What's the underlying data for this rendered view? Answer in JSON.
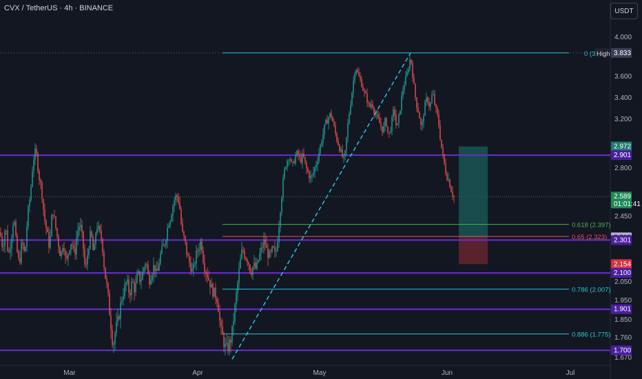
{
  "header": {
    "title": "CVX / TetherUS · 4h · BINANCE",
    "currency_button": "USDT"
  },
  "chart_data": {
    "type": "candlestick",
    "symbol": "CVX / TetherUS",
    "timeframe": "4h",
    "exchange": "BINANCE",
    "y_axis_ticks": [
      "4.000",
      "3.600",
      "3.400",
      "3.200",
      "2.800",
      "2.450",
      "2.050",
      "1.950",
      "1.850",
      "1.760",
      "1.670"
    ],
    "x_axis_ticks": [
      "Mar",
      "Apr",
      "May",
      "Jun",
      "Jul"
    ],
    "ylim": [
      1.65,
      4.15
    ],
    "price_badges": [
      {
        "value": "3.833",
        "color": "#3a4157",
        "text_color": "#ffffff"
      },
      {
        "value": "2.972",
        "color": "#1f7a72",
        "text_color": "#ffffff"
      },
      {
        "value": "2.901",
        "color": "#4b1f9e",
        "text_color": "#ffffff"
      },
      {
        "value": "2.589",
        "sub": "01:01:41",
        "color": "#1f8a55",
        "text_color": "#ffffff"
      },
      {
        "value": "2.318",
        "color": "#b2b5be",
        "text_color": "#131722"
      },
      {
        "value": "2.301",
        "color": "#4b1f9e",
        "text_color": "#ffffff"
      },
      {
        "value": "2.154",
        "color": "#d33244",
        "text_color": "#ffffff"
      },
      {
        "value": "2.100",
        "color": "#4b1f9e",
        "text_color": "#ffffff"
      },
      {
        "value": "1.901",
        "color": "#4b1f9e",
        "text_color": "#ffffff"
      },
      {
        "value": "1.700",
        "color": "#4b1f9e",
        "text_color": "#ffffff"
      }
    ],
    "horizontal_levels": [
      {
        "value": 2.901,
        "color": "#6a2cd8"
      },
      {
        "value": 2.301,
        "color": "#6a2cd8"
      },
      {
        "value": 2.1,
        "color": "#6a2cd8"
      },
      {
        "value": 1.901,
        "color": "#6a2cd8"
      },
      {
        "value": 1.7,
        "color": "#6a2cd8"
      }
    ],
    "fib_levels": [
      {
        "label": "0 (3.833)",
        "value": 3.833,
        "color": "#26c6da"
      },
      {
        "label": "0.618 (2.397)",
        "value": 2.397,
        "color": "#4caf50"
      },
      {
        "label": "0.65 (2.323)",
        "value": 2.323,
        "color": "#ef5350"
      },
      {
        "label": "0.786 (2.007)",
        "value": 2.007,
        "color": "#26c6da"
      },
      {
        "label": "0.886 (1.775)",
        "value": 1.775,
        "color": "#26c6da"
      }
    ],
    "fib_top_label_visible": "0 (3.",
    "high_marker": "High",
    "trendline": {
      "color": "#26c6da",
      "style": "dashed",
      "from": {
        "date": "2024-04-09",
        "price": 1.66
      },
      "to": {
        "date": "2024-05-24",
        "price": 3.833
      }
    },
    "position_box": {
      "entry": 2.318,
      "target": 2.972,
      "stop": 2.154,
      "profit_color": "#1b5e5a",
      "loss_color": "#6b2630"
    },
    "last_price": "2.589",
    "countdown": "01:01:41",
    "reference_line": 3.833,
    "price_path": [
      [
        0,
        2.35
      ],
      [
        4,
        2.25
      ],
      [
        8,
        2.4
      ],
      [
        12,
        2.2
      ],
      [
        16,
        2.3
      ],
      [
        20,
        2.45
      ],
      [
        24,
        2.25
      ],
      [
        28,
        2.15
      ],
      [
        32,
        2.3
      ],
      [
        36,
        2.2
      ],
      [
        40,
        2.45
      ],
      [
        44,
        2.6
      ],
      [
        48,
        2.85
      ],
      [
        52,
        2.95
      ],
      [
        56,
        2.75
      ],
      [
        60,
        2.65
      ],
      [
        64,
        2.45
      ],
      [
        68,
        2.35
      ],
      [
        72,
        2.25
      ],
      [
        76,
        2.5
      ],
      [
        80,
        2.4
      ],
      [
        84,
        2.3
      ],
      [
        88,
        2.2
      ],
      [
        92,
        2.3
      ],
      [
        96,
        2.15
      ],
      [
        100,
        2.25
      ],
      [
        104,
        2.3
      ],
      [
        108,
        2.2
      ],
      [
        112,
        2.35
      ],
      [
        116,
        2.4
      ],
      [
        120,
        2.3
      ],
      [
        124,
        2.1
      ],
      [
        128,
        2.25
      ],
      [
        132,
        2.35
      ],
      [
        136,
        2.2
      ],
      [
        140,
        2.4
      ],
      [
        144,
        2.35
      ],
      [
        148,
        2.3
      ],
      [
        152,
        2.1
      ],
      [
        156,
        2.0
      ],
      [
        160,
        1.85
      ],
      [
        164,
        1.72
      ],
      [
        168,
        1.8
      ],
      [
        172,
        1.85
      ],
      [
        176,
        1.95
      ],
      [
        180,
        2.0
      ],
      [
        184,
        2.05
      ],
      [
        188,
        1.98
      ],
      [
        192,
        2.05
      ],
      [
        196,
        2.0
      ],
      [
        200,
        2.1
      ],
      [
        204,
        2.05
      ],
      [
        208,
        2.12
      ],
      [
        212,
        2.18
      ],
      [
        216,
        2.05
      ],
      [
        220,
        2.1
      ],
      [
        224,
        2.15
      ],
      [
        228,
        2.08
      ],
      [
        232,
        2.2
      ],
      [
        236,
        2.25
      ],
      [
        240,
        2.3
      ],
      [
        244,
        2.4
      ],
      [
        248,
        2.45
      ],
      [
        252,
        2.55
      ],
      [
        256,
        2.6
      ],
      [
        260,
        2.55
      ],
      [
        264,
        2.35
      ],
      [
        268,
        2.3
      ],
      [
        272,
        2.2
      ],
      [
        276,
        2.15
      ],
      [
        280,
        2.1
      ],
      [
        284,
        2.2
      ],
      [
        288,
        2.25
      ],
      [
        292,
        2.3
      ],
      [
        296,
        2.15
      ],
      [
        300,
        2.1
      ],
      [
        304,
        2.05
      ],
      [
        308,
        2.0
      ],
      [
        312,
        1.98
      ],
      [
        316,
        1.95
      ],
      [
        320,
        1.8
      ],
      [
        324,
        1.75
      ],
      [
        328,
        1.7
      ],
      [
        332,
        1.72
      ],
      [
        336,
        1.76
      ],
      [
        340,
        1.88
      ],
      [
        344,
        2.0
      ],
      [
        348,
        2.15
      ],
      [
        352,
        2.25
      ],
      [
        356,
        2.2
      ],
      [
        360,
        2.18
      ],
      [
        364,
        2.1
      ],
      [
        368,
        2.15
      ],
      [
        372,
        2.12
      ],
      [
        376,
        2.2
      ],
      [
        380,
        2.25
      ],
      [
        384,
        2.3
      ],
      [
        388,
        2.22
      ],
      [
        392,
        2.2
      ],
      [
        396,
        2.25
      ],
      [
        400,
        2.2
      ],
      [
        404,
        2.35
      ],
      [
        408,
        2.55
      ],
      [
        412,
        2.75
      ],
      [
        416,
        2.85
      ],
      [
        420,
        2.9
      ],
      [
        424,
        2.8
      ],
      [
        428,
        2.88
      ],
      [
        432,
        2.92
      ],
      [
        436,
        2.85
      ],
      [
        440,
        2.9
      ],
      [
        444,
        2.8
      ],
      [
        448,
        2.75
      ],
      [
        452,
        2.72
      ],
      [
        456,
        2.78
      ],
      [
        460,
        2.85
      ],
      [
        464,
        2.95
      ],
      [
        468,
        3.05
      ],
      [
        472,
        3.15
      ],
      [
        476,
        3.2
      ],
      [
        480,
        3.25
      ],
      [
        484,
        3.15
      ],
      [
        488,
        3.05
      ],
      [
        492,
        2.98
      ],
      [
        496,
        2.9
      ],
      [
        500,
        2.85
      ],
      [
        504,
        3.1
      ],
      [
        508,
        3.3
      ],
      [
        512,
        3.5
      ],
      [
        516,
        3.7
      ],
      [
        520,
        3.6
      ],
      [
        524,
        3.55
      ],
      [
        528,
        3.45
      ],
      [
        532,
        3.4
      ],
      [
        536,
        3.3
      ],
      [
        540,
        3.35
      ],
      [
        544,
        3.25
      ],
      [
        548,
        3.2
      ],
      [
        552,
        3.15
      ],
      [
        556,
        3.1
      ],
      [
        560,
        3.2
      ],
      [
        564,
        3.05
      ],
      [
        568,
        3.15
      ],
      [
        572,
        3.3
      ],
      [
        576,
        3.1
      ],
      [
        580,
        3.25
      ],
      [
        584,
        3.45
      ],
      [
        588,
        3.55
      ],
      [
        592,
        3.65
      ],
      [
        596,
        3.8
      ],
      [
        600,
        3.55
      ],
      [
        604,
        3.35
      ],
      [
        608,
        3.25
      ],
      [
        612,
        3.1
      ],
      [
        616,
        3.3
      ],
      [
        620,
        3.4
      ],
      [
        624,
        3.3
      ],
      [
        628,
        3.45
      ],
      [
        632,
        3.3
      ],
      [
        636,
        3.2
      ],
      [
        640,
        3.0
      ],
      [
        644,
        2.85
      ],
      [
        648,
        2.75
      ],
      [
        652,
        2.7
      ],
      [
        656,
        2.62
      ],
      [
        659,
        2.589
      ]
    ]
  }
}
